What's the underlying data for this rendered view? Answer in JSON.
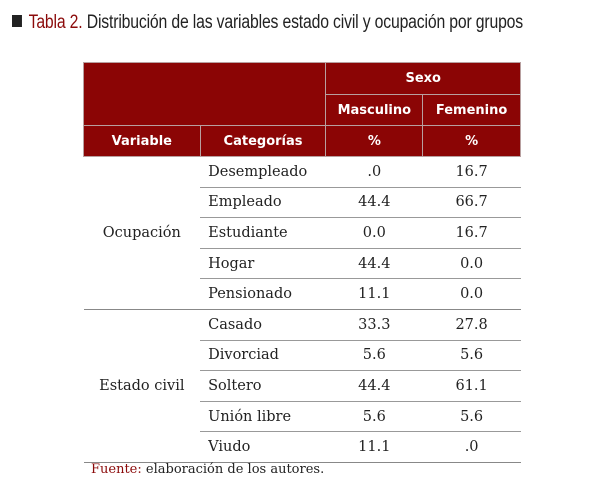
{
  "title": {
    "label": "Tabla 2.",
    "text": "Distribución de las variables estado civil y ocupación por grupos"
  },
  "header": {
    "group": "Sexo",
    "masc": "Masculino",
    "fem": "Femenino",
    "variable": "Variable",
    "categorias": "Categorías",
    "pct_m": "%",
    "pct_f": "%"
  },
  "groups": [
    {
      "name": "Ocupación",
      "rows": [
        [
          "Desempleado",
          ".0",
          "16.7"
        ],
        [
          "Empleado",
          "44.4",
          "66.7"
        ],
        [
          "Estudiante",
          "0.0",
          "16.7"
        ],
        [
          "Hogar",
          "44.4",
          "0.0"
        ],
        [
          "Pensionado",
          "11.1",
          "0.0"
        ]
      ]
    },
    {
      "name": "Estado civil",
      "rows": [
        [
          "Casado",
          "33.3",
          "27.8"
        ],
        [
          "Divorciad",
          "5.6",
          "5.6"
        ],
        [
          "Soltero",
          "44.4",
          "61.1"
        ],
        [
          "Unión libre",
          "5.6",
          "5.6"
        ],
        [
          "Viudo",
          "11.1",
          ".0"
        ]
      ]
    }
  ],
  "source": {
    "label": "Fuente:",
    "text": " elaboración de los autores."
  }
}
